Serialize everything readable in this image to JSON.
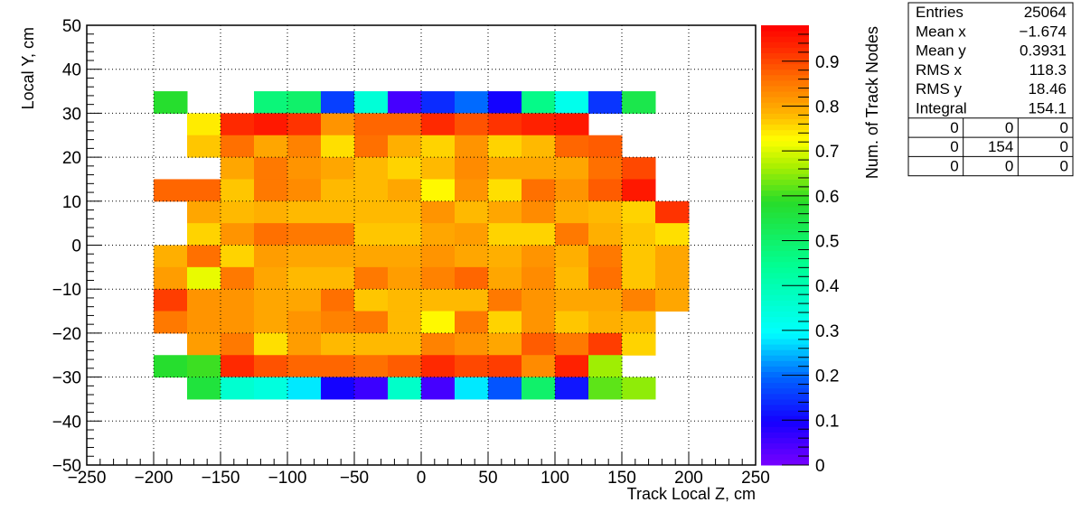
{
  "chart_data": {
    "type": "heatmap",
    "title": "",
    "xlabel": "Track Local Z, cm",
    "ylabel": "Local Y, cm",
    "zlabel": "Num. of Track Nodes",
    "xlim": [
      -250,
      250
    ],
    "ylim": [
      -50,
      50
    ],
    "zlim": [
      0,
      0.98
    ],
    "x_ticks": [
      -250,
      -200,
      -150,
      -100,
      -50,
      0,
      50,
      100,
      150,
      200,
      250
    ],
    "x_tick_labels": [
      "−250",
      "−200",
      "−150",
      "−100",
      "−50",
      "0",
      "50",
      "100",
      "150",
      "200",
      "250"
    ],
    "y_ticks": [
      -50,
      -40,
      -30,
      -20,
      -10,
      0,
      10,
      20,
      30,
      40,
      50
    ],
    "y_tick_labels": [
      "−50",
      "−40",
      "−30",
      "−20",
      "−10",
      "0",
      "10",
      "20",
      "30",
      "40",
      "50"
    ],
    "z_ticks": [
      0,
      0.1,
      0.2,
      0.3,
      0.4,
      0.5,
      0.6,
      0.7,
      0.8,
      0.9
    ],
    "z_tick_labels": [
      "0",
      "0.1",
      "0.2",
      "0.3",
      "0.4",
      "0.5",
      "0.6",
      "0.7",
      "0.8",
      "0.9"
    ],
    "grid": true,
    "bin_width_x": 25,
    "bin_height_y": 5,
    "x_bin_starts": [
      -200,
      -175,
      -150,
      -125,
      -100,
      -75,
      -50,
      -25,
      0,
      25,
      50,
      75,
      100,
      125,
      150,
      175
    ],
    "y_bin_tops": [
      35,
      30,
      25,
      20,
      15,
      10,
      5,
      0,
      -5,
      -10,
      -15,
      -20,
      -25,
      -30
    ],
    "z": [
      [
        0.58,
        null,
        null,
        0.48,
        0.5,
        0.16,
        0.35,
        0.05,
        0.14,
        0.2,
        0.1,
        0.46,
        0.32,
        0.15,
        0.54,
        null
      ],
      [
        null,
        0.74,
        0.93,
        0.95,
        0.92,
        0.82,
        0.87,
        0.87,
        0.93,
        0.89,
        0.92,
        0.94,
        0.95,
        null,
        null,
        null
      ],
      [
        null,
        0.77,
        0.86,
        0.8,
        0.84,
        0.75,
        0.86,
        0.79,
        0.76,
        0.82,
        0.76,
        0.78,
        0.87,
        0.88,
        null,
        null
      ],
      [
        null,
        null,
        0.8,
        0.85,
        0.82,
        0.8,
        0.78,
        0.76,
        0.78,
        0.83,
        0.8,
        0.8,
        0.8,
        0.86,
        0.9,
        null
      ],
      [
        0.87,
        0.87,
        0.77,
        0.85,
        0.83,
        0.78,
        0.78,
        0.8,
        0.73,
        0.82,
        0.75,
        0.86,
        0.82,
        0.88,
        0.95,
        null
      ],
      [
        null,
        0.8,
        0.78,
        0.79,
        0.78,
        0.78,
        0.78,
        0.78,
        0.82,
        0.78,
        0.8,
        0.83,
        0.79,
        0.78,
        0.76,
        0.92
      ],
      [
        null,
        0.76,
        0.82,
        0.86,
        0.85,
        0.85,
        0.77,
        0.77,
        0.8,
        0.81,
        0.76,
        0.76,
        0.85,
        0.79,
        0.77,
        0.75
      ],
      [
        0.79,
        0.86,
        0.76,
        0.81,
        0.8,
        0.8,
        0.8,
        0.8,
        0.82,
        0.8,
        0.79,
        0.82,
        0.79,
        0.85,
        0.77,
        0.8
      ],
      [
        0.81,
        0.71,
        0.85,
        0.8,
        0.78,
        0.78,
        0.85,
        0.81,
        0.84,
        0.87,
        0.8,
        0.83,
        0.78,
        0.86,
        0.77,
        0.8
      ],
      [
        0.91,
        0.82,
        0.82,
        0.8,
        0.8,
        0.86,
        0.77,
        0.78,
        0.78,
        0.78,
        0.85,
        0.82,
        0.8,
        0.8,
        0.84,
        0.8
      ],
      [
        0.85,
        0.82,
        0.82,
        0.8,
        0.82,
        0.84,
        0.85,
        0.78,
        0.73,
        0.85,
        0.76,
        0.82,
        0.77,
        0.79,
        0.78,
        null
      ],
      [
        null,
        0.81,
        0.85,
        0.75,
        0.81,
        0.78,
        0.78,
        0.78,
        0.84,
        0.82,
        0.8,
        0.88,
        0.85,
        0.91,
        0.76,
        null
      ],
      [
        0.58,
        0.6,
        0.93,
        0.89,
        0.87,
        0.87,
        0.86,
        0.88,
        0.93,
        0.9,
        0.91,
        0.83,
        0.94,
        0.66,
        null,
        null
      ],
      [
        null,
        0.56,
        0.36,
        0.34,
        0.28,
        0.1,
        0.06,
        0.37,
        0.05,
        0.28,
        0.18,
        0.5,
        0.12,
        0.62,
        0.65,
        null
      ]
    ],
    "stats": {
      "rows": [
        {
          "label": "Entries",
          "value": "25064"
        },
        {
          "label": "Mean x",
          "value": "−1.674"
        },
        {
          "label": "Mean y",
          "value": "0.3931"
        },
        {
          "label": "RMS x",
          "value": "118.3"
        },
        {
          "label": "RMS y",
          "value": "18.46"
        },
        {
          "label": "Integral",
          "value": "154.1"
        }
      ],
      "grid": [
        [
          "0",
          "0",
          "0"
        ],
        [
          "0",
          "154",
          "0"
        ],
        [
          "0",
          "0",
          "0"
        ]
      ]
    }
  }
}
